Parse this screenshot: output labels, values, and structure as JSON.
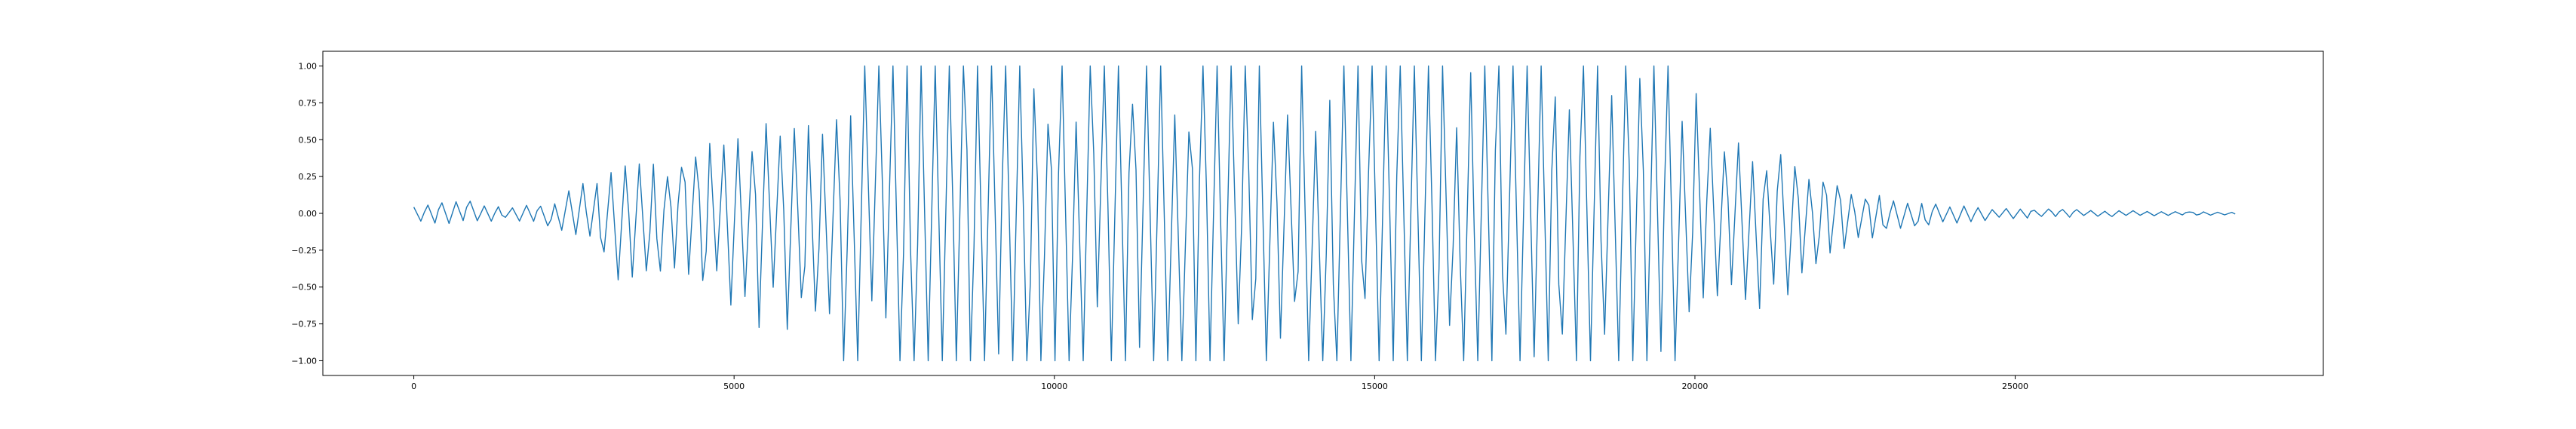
{
  "chart_data": {
    "type": "line",
    "title": "",
    "xlabel": "",
    "ylabel": "",
    "xlim": [
      -1420,
      29810
    ],
    "ylim": [
      -1.1,
      1.1
    ],
    "grid": false,
    "x_ticks": [
      {
        "value": 0,
        "label": "0"
      },
      {
        "value": 5000,
        "label": "5000"
      },
      {
        "value": 10000,
        "label": "10000"
      },
      {
        "value": 15000,
        "label": "15000"
      },
      {
        "value": 20000,
        "label": "20000"
      },
      {
        "value": 25000,
        "label": "25000"
      }
    ],
    "y_ticks": [
      {
        "value": 1.0,
        "label": "1.00"
      },
      {
        "value": 0.75,
        "label": "0.75"
      },
      {
        "value": 0.5,
        "label": "0.50"
      },
      {
        "value": 0.25,
        "label": "0.25"
      },
      {
        "value": 0.0,
        "label": "0.00"
      },
      {
        "value": -0.25,
        "label": "−0.25"
      },
      {
        "value": -0.5,
        "label": "−0.50"
      },
      {
        "value": -0.75,
        "label": "−0.75"
      },
      {
        "value": -1.0,
        "label": "−1.00"
      }
    ],
    "series": [
      {
        "color": "#1f77b4",
        "envelope": {
          "x": [
            0,
            700,
            1500,
            2200,
            2700,
            3200,
            4000,
            4800,
            5500,
            6200,
            6800,
            7000,
            9000,
            12000,
            15000,
            17500,
            19000,
            19800,
            20000,
            20500,
            21300,
            22000,
            22700,
            23500,
            24500,
            25500,
            27000,
            28400
          ],
          "upper": [
            0.05,
            0.1,
            0.05,
            0.08,
            0.3,
            0.4,
            0.45,
            0.5,
            0.65,
            0.7,
            0.85,
            1.0,
            1.0,
            1.0,
            1.0,
            1.0,
            1.0,
            1.0,
            0.95,
            0.6,
            0.42,
            0.3,
            0.15,
            0.08,
            0.04,
            0.03,
            0.02,
            0.01
          ],
          "lower": [
            -0.06,
            -0.08,
            -0.04,
            -0.1,
            -0.25,
            -0.5,
            -0.5,
            -0.6,
            -0.9,
            -0.95,
            -1.0,
            -1.0,
            -1.0,
            -1.0,
            -1.0,
            -1.0,
            -1.0,
            -1.0,
            -0.9,
            -0.7,
            -0.62,
            -0.35,
            -0.18,
            -0.1,
            -0.05,
            -0.03,
            -0.02,
            -0.01
          ]
        }
      }
    ]
  }
}
